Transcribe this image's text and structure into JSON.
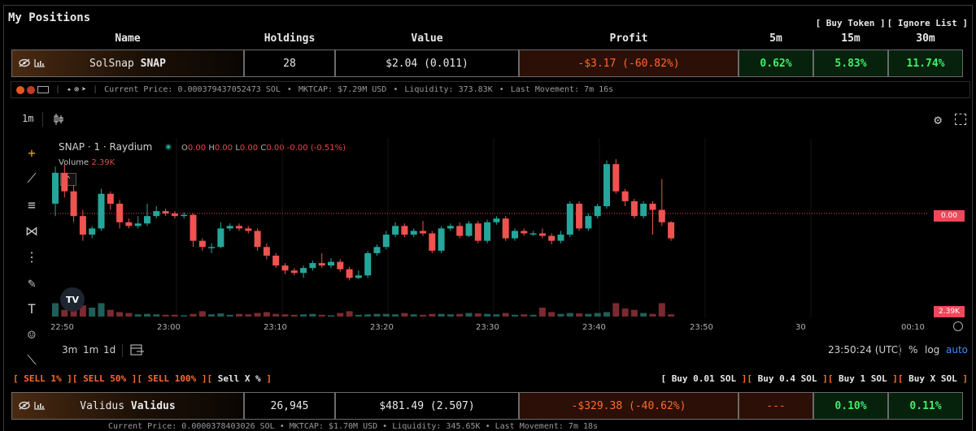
{
  "panel": {
    "title": "My Positions"
  },
  "links": {
    "buy_token": "[ Buy Token ]",
    "ignore_list": "[ Ignore List ]"
  },
  "columns": {
    "name": "Name",
    "holdings": "Holdings",
    "value": "Value",
    "profit": "Profit",
    "m5": "5m",
    "m15": "15m",
    "m30": "30m"
  },
  "positions": [
    {
      "name": "SolSnap",
      "symbol": "SNAP",
      "holdings": "28",
      "value": "$2.04 (0.011)",
      "profit": "-$3.17 (-60.82%)",
      "m5": "0.62%",
      "m15": "5.83%",
      "m30": "11.74%"
    },
    {
      "name": "Validus",
      "symbol": "Validus",
      "holdings": "26,945",
      "value": "$481.49 (2.507)",
      "profit": "-$329.38 (-40.62%)",
      "m5": "---",
      "m15": "0.10%",
      "m30": "0.11%"
    }
  ],
  "info": {
    "current_price": "Current Price: 0.000379437052473 SOL",
    "mktcap": "MKTCAP: $7.29M USD",
    "liquidity": "Liquidity: 373.83K",
    "last_movement": "Last Movement: 7m 16s",
    "second_row_partial": "Current Price: 0.0000378403026 SOL • MKTCAP: $1.70M USD • Liquidity: 345.65K • Last Movement: 7m 18s"
  },
  "chart_toolbar": {
    "interval": "1m"
  },
  "legend": {
    "symbol": "SNAP · 1 · Raydium",
    "o_label": "O",
    "o": "0.00",
    "h_label": "H",
    "h": "0.00",
    "l_label": "L",
    "l": "0.00",
    "c_label": "C",
    "c": "0.00",
    "change": "-0.00 (-0.51%)",
    "volume_label": "Volume",
    "volume": "2.39K"
  },
  "price_tags": {
    "price": "0.00",
    "volume": "2.39K"
  },
  "time_axis": [
    "22:50",
    "23:00",
    "23:10",
    "23:20",
    "23:30",
    "23:40",
    "23:50",
    "30",
    "00:10"
  ],
  "bottom_toolbar": {
    "r3m": "3m",
    "r1m": "1m",
    "r1d": "1d",
    "clock": "23:50:24 (UTC)",
    "pct": "%",
    "log": "log",
    "auto": "auto"
  },
  "sell_actions": [
    "SELL 1%",
    "SELL 50%",
    "SELL 100%",
    "Sell X %"
  ],
  "buy_actions": [
    "Buy 0.01 SOL",
    "Buy 0.4 SOL",
    "Buy 1 SOL",
    "Buy X SOL"
  ],
  "tv_logo": "TV",
  "colors": {
    "up": "#26a69a",
    "down": "#ef5350",
    "loss": "#ff6a2a",
    "gain": "#3ef06a"
  },
  "chart_data": {
    "type": "candlestick",
    "symbol": "SNAP · 1 · Raydium",
    "x_ticks": [
      "22:50",
      "23:00",
      "23:10",
      "23:20",
      "23:30",
      "23:40",
      "23:50",
      "30",
      "00:10"
    ],
    "candles": [
      {
        "o": 0.3,
        "c": 0.55,
        "h": 0.6,
        "l": 0.2,
        "v": 0.3
      },
      {
        "o": 0.55,
        "c": 0.4,
        "h": 0.62,
        "l": 0.35,
        "v": 0.15
      },
      {
        "o": 0.4,
        "c": 0.2,
        "h": 0.45,
        "l": 0.15,
        "v": 0.35
      },
      {
        "o": 0.2,
        "c": 0.05,
        "h": 0.25,
        "l": 0.0,
        "v": 0.25
      },
      {
        "o": 0.05,
        "c": 0.1,
        "h": 0.12,
        "l": 0.02,
        "v": 0.2
      },
      {
        "o": 0.1,
        "c": 0.38,
        "h": 0.42,
        "l": 0.08,
        "v": 0.3
      },
      {
        "o": 0.38,
        "c": 0.3,
        "h": 0.4,
        "l": 0.25,
        "v": 0.15
      },
      {
        "o": 0.3,
        "c": 0.15,
        "h": 0.33,
        "l": 0.1,
        "v": 0.1
      },
      {
        "o": 0.15,
        "c": 0.12,
        "h": 0.18,
        "l": 0.1,
        "v": 0.08
      },
      {
        "o": 0.12,
        "c": 0.14,
        "h": 0.2,
        "l": 0.1,
        "v": 0.05
      },
      {
        "o": 0.14,
        "c": 0.2,
        "h": 0.3,
        "l": 0.12,
        "v": 0.06
      },
      {
        "o": 0.2,
        "c": 0.24,
        "h": 0.28,
        "l": 0.18,
        "v": 0.05
      },
      {
        "o": 0.24,
        "c": 0.22,
        "h": 0.26,
        "l": 0.2,
        "v": 0.04
      },
      {
        "o": 0.22,
        "c": 0.2,
        "h": 0.24,
        "l": 0.18,
        "v": 0.04
      },
      {
        "o": 0.2,
        "c": 0.21,
        "h": 0.23,
        "l": 0.18,
        "v": 0.03
      },
      {
        "o": 0.21,
        "c": 0.0,
        "h": 0.22,
        "l": -0.05,
        "v": 0.06
      },
      {
        "o": 0.0,
        "c": -0.05,
        "h": 0.02,
        "l": -0.08,
        "v": 0.12
      },
      {
        "o": -0.05,
        "c": -0.05,
        "h": -0.02,
        "l": -0.1,
        "v": 0.05
      },
      {
        "o": -0.05,
        "c": 0.1,
        "h": 0.15,
        "l": -0.06,
        "v": 0.07
      },
      {
        "o": 0.1,
        "c": 0.12,
        "h": 0.14,
        "l": 0.08,
        "v": 0.04
      },
      {
        "o": 0.12,
        "c": 0.1,
        "h": 0.14,
        "l": 0.08,
        "v": 0.06
      },
      {
        "o": 0.1,
        "c": 0.08,
        "h": 0.12,
        "l": 0.06,
        "v": 0.05
      },
      {
        "o": 0.08,
        "c": -0.05,
        "h": 0.1,
        "l": -0.08,
        "v": 0.08
      },
      {
        "o": -0.05,
        "c": -0.12,
        "h": -0.02,
        "l": -0.15,
        "v": 0.1
      },
      {
        "o": -0.12,
        "c": -0.2,
        "h": -0.1,
        "l": -0.22,
        "v": 0.06
      },
      {
        "o": -0.2,
        "c": -0.24,
        "h": -0.18,
        "l": -0.27,
        "v": 0.05
      },
      {
        "o": -0.24,
        "c": -0.26,
        "h": -0.22,
        "l": -0.28,
        "v": 0.04
      },
      {
        "o": -0.26,
        "c": -0.22,
        "h": -0.2,
        "l": -0.3,
        "v": 0.05
      },
      {
        "o": -0.22,
        "c": -0.18,
        "h": -0.16,
        "l": -0.24,
        "v": 0.06
      },
      {
        "o": -0.18,
        "c": -0.2,
        "h": -0.1,
        "l": -0.22,
        "v": 0.04
      },
      {
        "o": -0.2,
        "c": -0.17,
        "h": -0.14,
        "l": -0.22,
        "v": 0.03
      },
      {
        "o": -0.17,
        "c": -0.23,
        "h": -0.15,
        "l": -0.25,
        "v": 0.08
      },
      {
        "o": -0.23,
        "c": -0.3,
        "h": -0.21,
        "l": -0.32,
        "v": 0.12
      },
      {
        "o": -0.3,
        "c": -0.28,
        "h": -0.24,
        "l": -0.31,
        "v": 0.04
      },
      {
        "o": -0.28,
        "c": -0.1,
        "h": -0.08,
        "l": -0.3,
        "v": 0.05
      },
      {
        "o": -0.1,
        "c": -0.05,
        "h": -0.03,
        "l": -0.12,
        "v": 0.06
      },
      {
        "o": -0.05,
        "c": 0.05,
        "h": 0.08,
        "l": -0.07,
        "v": 0.06
      },
      {
        "o": 0.05,
        "c": 0.12,
        "h": 0.15,
        "l": 0.03,
        "v": 0.05
      },
      {
        "o": 0.12,
        "c": 0.05,
        "h": 0.14,
        "l": 0.03,
        "v": 0.08
      },
      {
        "o": 0.05,
        "c": 0.08,
        "h": 0.1,
        "l": 0.03,
        "v": 0.05
      },
      {
        "o": 0.08,
        "c": 0.06,
        "h": 0.16,
        "l": 0.04,
        "v": 0.04
      },
      {
        "o": 0.06,
        "c": -0.08,
        "h": 0.08,
        "l": -0.1,
        "v": 0.06
      },
      {
        "o": -0.08,
        "c": 0.1,
        "h": 0.12,
        "l": -0.1,
        "v": 0.06
      },
      {
        "o": 0.1,
        "c": 0.12,
        "h": 0.14,
        "l": 0.08,
        "v": 0.05
      },
      {
        "o": 0.12,
        "c": 0.04,
        "h": 0.15,
        "l": 0.02,
        "v": 0.06
      },
      {
        "o": 0.04,
        "c": 0.14,
        "h": 0.16,
        "l": 0.03,
        "v": 0.08
      },
      {
        "o": 0.14,
        "c": 0.0,
        "h": 0.16,
        "l": -0.02,
        "v": 0.07
      },
      {
        "o": 0.0,
        "c": 0.15,
        "h": 0.17,
        "l": -0.02,
        "v": 0.06
      },
      {
        "o": 0.15,
        "c": 0.18,
        "h": 0.2,
        "l": 0.13,
        "v": 0.05
      },
      {
        "o": 0.18,
        "c": 0.02,
        "h": 0.2,
        "l": 0.0,
        "v": 0.08
      },
      {
        "o": 0.02,
        "c": 0.08,
        "h": 0.1,
        "l": 0.0,
        "v": 0.04
      },
      {
        "o": 0.08,
        "c": 0.06,
        "h": 0.1,
        "l": 0.04,
        "v": 0.05
      },
      {
        "o": 0.06,
        "c": 0.06,
        "h": 0.08,
        "l": 0.04,
        "v": 0.04
      },
      {
        "o": 0.06,
        "c": 0.04,
        "h": 0.1,
        "l": 0.02,
        "v": 0.2
      },
      {
        "o": 0.04,
        "c": 0.0,
        "h": 0.06,
        "l": -0.03,
        "v": 0.1
      },
      {
        "o": 0.0,
        "c": 0.05,
        "h": 0.08,
        "l": -0.02,
        "v": 0.06
      },
      {
        "o": 0.05,
        "c": 0.3,
        "h": 0.32,
        "l": 0.03,
        "v": 0.08
      },
      {
        "o": 0.3,
        "c": 0.1,
        "h": 0.32,
        "l": 0.08,
        "v": 0.07
      },
      {
        "o": 0.1,
        "c": 0.2,
        "h": 0.22,
        "l": 0.08,
        "v": 0.06
      },
      {
        "o": 0.2,
        "c": 0.28,
        "h": 0.3,
        "l": 0.18,
        "v": 0.08
      },
      {
        "o": 0.28,
        "c": 0.62,
        "h": 0.65,
        "l": 0.26,
        "v": 0.1
      },
      {
        "o": 0.62,
        "c": 0.4,
        "h": 0.66,
        "l": 0.38,
        "v": 0.3
      },
      {
        "o": 0.4,
        "c": 0.32,
        "h": 0.42,
        "l": 0.28,
        "v": 0.18
      },
      {
        "o": 0.32,
        "c": 0.2,
        "h": 0.34,
        "l": 0.18,
        "v": 0.15
      },
      {
        "o": 0.2,
        "c": 0.3,
        "h": 0.32,
        "l": 0.18,
        "v": 0.08
      },
      {
        "o": 0.3,
        "c": 0.25,
        "h": 0.32,
        "l": 0.05,
        "v": 0.06
      },
      {
        "o": 0.25,
        "c": 0.15,
        "h": 0.5,
        "l": 0.12,
        "v": 0.3
      },
      {
        "o": 0.15,
        "c": 0.02,
        "h": 0.16,
        "l": 0.0,
        "v": 0.05
      }
    ]
  }
}
